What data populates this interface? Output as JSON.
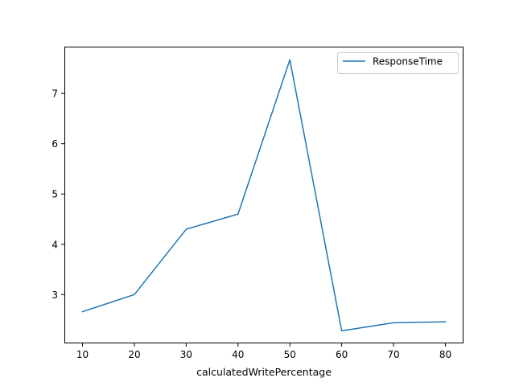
{
  "chart_data": {
    "type": "line",
    "title": "",
    "xlabel": "calculatedWritePercentage",
    "ylabel": "",
    "x": [
      10,
      20,
      30,
      40,
      50,
      60,
      70,
      80
    ],
    "series": [
      {
        "name": "ResponseTime",
        "values": [
          2.66,
          3.0,
          4.3,
          4.6,
          7.67,
          2.28,
          2.44,
          2.46
        ],
        "color": "#1f77b4"
      }
    ],
    "xlim": [
      6.5,
      83.5
    ],
    "ylim": [
      2.03,
      7.93
    ],
    "xticks": [
      10,
      20,
      30,
      40,
      50,
      60,
      70,
      80
    ],
    "yticks": [
      3,
      4,
      5,
      6,
      7
    ],
    "grid": false,
    "legend_position": "top-right"
  }
}
